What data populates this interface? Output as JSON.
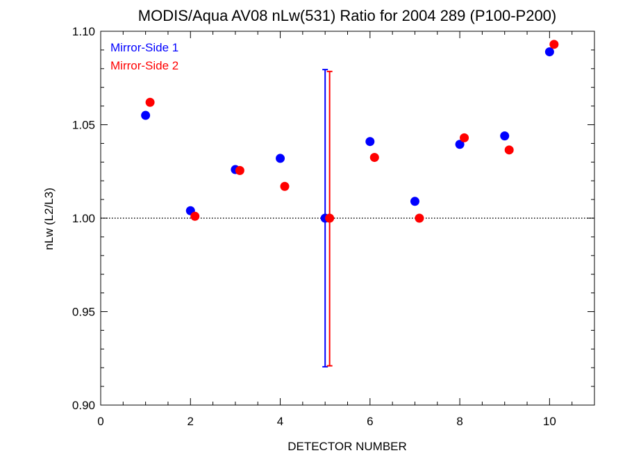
{
  "chart_data": {
    "type": "scatter",
    "title": "MODIS/Aqua AV08 nLw(531) Ratio for 2004 289 (P100-P200)",
    "xlabel": "DETECTOR NUMBER",
    "ylabel": "nLw (L2/L3)",
    "xlim": [
      0,
      11
    ],
    "ylim": [
      0.9,
      1.1
    ],
    "x_ticks": [
      0,
      2,
      4,
      6,
      8,
      10
    ],
    "x_tick_labels": [
      "0",
      "2",
      "4",
      "6",
      "8",
      "10"
    ],
    "y_ticks": [
      0.9,
      0.95,
      1.0,
      1.05,
      1.1
    ],
    "y_tick_labels": [
      "0.90",
      "0.95",
      "1.00",
      "1.05",
      "1.10"
    ],
    "reference_line": 1.0,
    "legend_position": "top-left",
    "series": [
      {
        "name": "Mirror-Side 1",
        "color": "#0000ff",
        "x": [
          1,
          2,
          3,
          4,
          5,
          6,
          7,
          8,
          9,
          10
        ],
        "y": [
          1.055,
          1.004,
          1.026,
          1.032,
          1.0,
          1.041,
          1.009,
          1.0395,
          1.044,
          1.089
        ],
        "error_bar": {
          "x": 5,
          "low": 0.9205,
          "high": 1.0795
        }
      },
      {
        "name": "Mirror-Side 2",
        "color": "#ff0000",
        "x": [
          1.1,
          2.1,
          3.1,
          4.1,
          5.1,
          6.1,
          7.1,
          8.1,
          9.1,
          10.1
        ],
        "y": [
          1.062,
          1.001,
          1.0255,
          1.017,
          1.0,
          1.0325,
          1.0,
          1.043,
          1.0365,
          1.093
        ],
        "error_bar": {
          "x": 5.1,
          "low": 0.921,
          "high": 1.0785
        }
      }
    ]
  }
}
